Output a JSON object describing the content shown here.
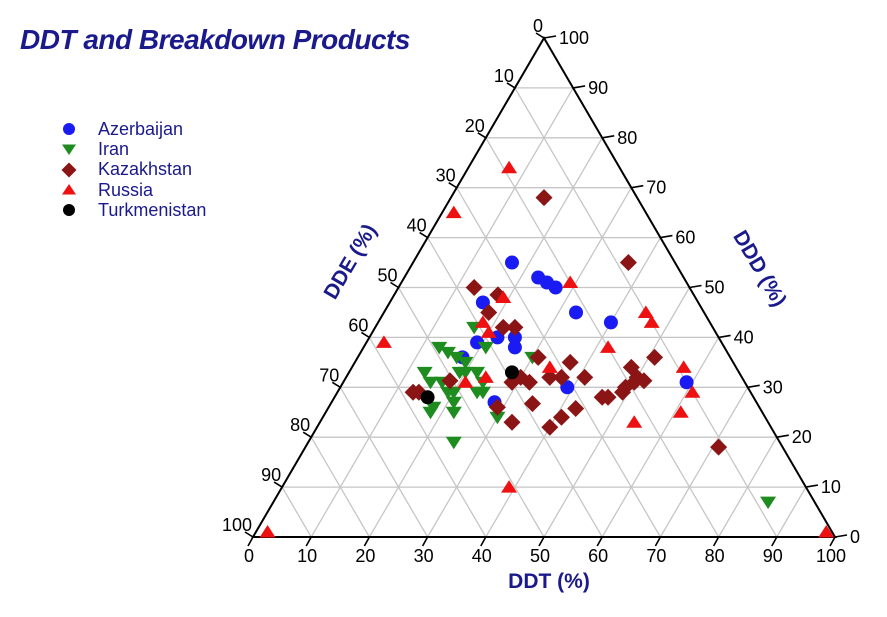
{
  "title": "DDT and Breakdown Products",
  "colors": {
    "title_text": "#1a1a8c",
    "axis_title_text": "#1a1a8c",
    "tick_text": "#000000",
    "grid": "#c6c6c6",
    "edge": "#000000",
    "background": "#ffffff",
    "azerbaijan": "#1a1af2",
    "iran": "#1f8c1f",
    "kazakhstan": "#8b1515",
    "russia": "#ee1111",
    "turkmenistan": "#000000"
  },
  "legend": {
    "items": [
      {
        "label": "Azerbaijan",
        "marker": "circle",
        "color": "#1a1af2"
      },
      {
        "label": "Iran",
        "marker": "triangle-down",
        "color": "#1f8c1f"
      },
      {
        "label": "Kazakhstan",
        "marker": "diamond",
        "color": "#8b1515"
      },
      {
        "label": "Russia",
        "marker": "triangle-up",
        "color": "#ee1111"
      },
      {
        "label": "Turkmenistan",
        "marker": "circle",
        "color": "#000000"
      }
    ]
  },
  "axes": {
    "left": {
      "title": "DDE (%)",
      "ticks": [
        0,
        10,
        20,
        30,
        40,
        50,
        60,
        70,
        80,
        90,
        100
      ]
    },
    "right": {
      "title": "DDD (%)",
      "ticks": [
        100,
        90,
        80,
        70,
        60,
        50,
        40,
        30,
        20,
        10,
        0
      ]
    },
    "bottom": {
      "title": "DDT (%)",
      "ticks": [
        0,
        10,
        20,
        30,
        40,
        50,
        60,
        70,
        80,
        90,
        100
      ]
    }
  },
  "chart_data": {
    "type": "scatter",
    "subtype": "ternary",
    "title": "DDT and Breakdown Products",
    "components": [
      "DDT %",
      "DDE %",
      "DDD %"
    ],
    "axis_range": [
      0,
      100
    ],
    "grid_step": 10,
    "grid": true,
    "legend_position": "upper-left",
    "series": [
      {
        "name": "Azerbaijan",
        "marker": "circle",
        "color": "#1a1af2",
        "points": [
          [
            17,
            28,
            55
          ],
          [
            23,
            25,
            52
          ],
          [
            25,
            24,
            51
          ],
          [
            27,
            23,
            50
          ],
          [
            33,
            22,
            45
          ],
          [
            40,
            17,
            43
          ],
          [
            16,
            37,
            47
          ],
          [
            19,
            42,
            39
          ],
          [
            18,
            46,
            36
          ],
          [
            22,
            38,
            40
          ],
          [
            25,
            35,
            40
          ],
          [
            26,
            36,
            38
          ],
          [
            39,
            31,
            30
          ],
          [
            28,
            45,
            27
          ],
          [
            59,
            10,
            31
          ]
        ]
      },
      {
        "name": "Iran",
        "marker": "triangle-down",
        "color": "#1f8c1f",
        "points": [
          [
            17,
            41,
            42
          ],
          [
            13,
            49,
            38
          ],
          [
            15,
            48,
            37
          ],
          [
            17,
            47,
            36
          ],
          [
            19,
            46,
            35
          ],
          [
            21,
            41,
            38
          ],
          [
            13,
            54,
            33
          ],
          [
            15,
            54,
            31
          ],
          [
            17,
            52,
            31
          ],
          [
            19,
            48,
            33
          ],
          [
            20,
            47,
            33
          ],
          [
            22,
            45,
            33
          ],
          [
            24,
            45,
            31
          ],
          [
            24,
            47,
            29
          ],
          [
            19,
            52,
            29
          ],
          [
            18,
            56,
            26
          ],
          [
            22,
            53,
            25
          ],
          [
            18,
            57,
            25
          ],
          [
            20,
            51,
            29
          ],
          [
            21,
            52,
            27
          ],
          [
            25,
            46,
            29
          ],
          [
            30,
            46,
            24
          ],
          [
            25,
            56,
            19
          ],
          [
            30,
            34,
            36
          ],
          [
            85,
            8,
            7
          ]
        ]
      },
      {
        "name": "Kazakhstan",
        "marker": "diamond",
        "color": "#8b1515",
        "points": [
          [
            16,
            16,
            68
          ],
          [
            37,
            8,
            55
          ],
          [
            13,
            37,
            50
          ],
          [
            18,
            34,
            49
          ],
          [
            18,
            37,
            45
          ],
          [
            22,
            36,
            42
          ],
          [
            24,
            34,
            42
          ],
          [
            31,
            33,
            36
          ],
          [
            37,
            28,
            35
          ],
          [
            51,
            13,
            36
          ],
          [
            48,
            18,
            34
          ],
          [
            50,
            18,
            32
          ],
          [
            51,
            17,
            31
          ],
          [
            49,
            21,
            30
          ],
          [
            46,
            26,
            28
          ],
          [
            47,
            25,
            28
          ],
          [
            49,
            22,
            29
          ],
          [
            50,
            19,
            31
          ],
          [
            30,
            38,
            32
          ],
          [
            32,
            37,
            31
          ],
          [
            29,
            40,
            31
          ],
          [
            35,
            33,
            32
          ],
          [
            37,
            31,
            32
          ],
          [
            41,
            27,
            32
          ],
          [
            18,
            50,
            31
          ],
          [
            14,
            57,
            29
          ],
          [
            13,
            58,
            29
          ],
          [
            29,
            45,
            26
          ],
          [
            33,
            44,
            23
          ],
          [
            35,
            39,
            27
          ],
          [
            40,
            38,
            22
          ],
          [
            41,
            35,
            24
          ],
          [
            43,
            32,
            26
          ],
          [
            71,
            11,
            18
          ]
        ]
      },
      {
        "name": "Russia",
        "marker": "triangle-up",
        "color": "#ee1111",
        "points": [
          [
            2,
            97,
            1
          ],
          [
            98,
            1,
            1
          ],
          [
            7,
            19,
            74
          ],
          [
            2,
            33,
            65
          ],
          [
            3,
            58,
            39
          ],
          [
            29,
            20,
            51
          ],
          [
            19,
            33,
            48
          ],
          [
            18,
            39,
            43
          ],
          [
            20,
            39,
            41
          ],
          [
            21,
            48,
            31
          ],
          [
            24,
            44,
            32
          ],
          [
            34,
            32,
            34
          ],
          [
            42,
            20,
            38
          ],
          [
            45,
            10,
            45
          ],
          [
            47,
            10,
            43
          ],
          [
            57,
            9,
            34
          ],
          [
            61,
            10,
            29
          ],
          [
            61,
            14,
            25
          ],
          [
            54,
            23,
            23
          ],
          [
            39,
            51,
            10
          ]
        ]
      },
      {
        "name": "Turkmenistan",
        "marker": "circle",
        "color": "#000000",
        "points": [
          [
            28,
            39,
            33
          ],
          [
            16,
            56,
            28
          ]
        ]
      }
    ]
  }
}
